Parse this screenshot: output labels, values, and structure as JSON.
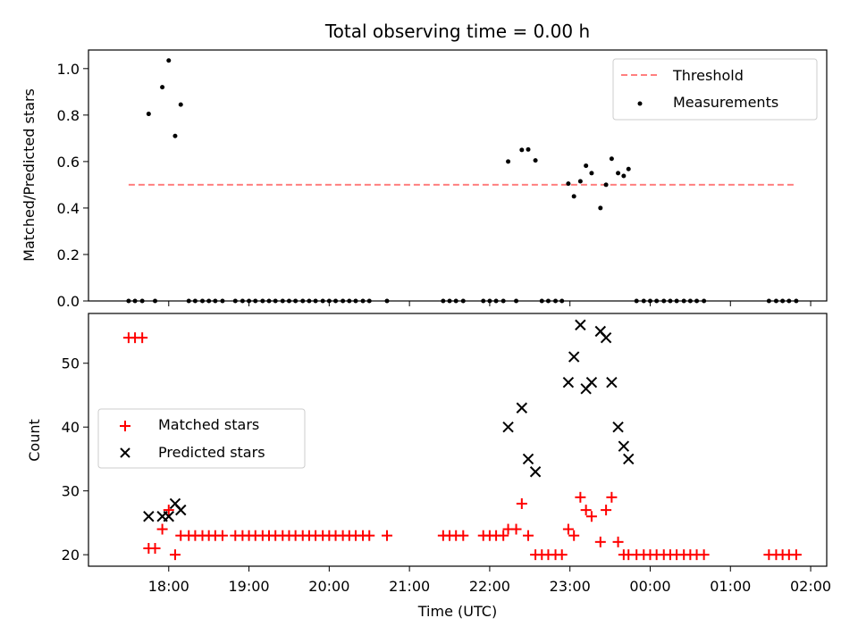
{
  "title": "Total observing time = 0.00 h",
  "chart_data": [
    {
      "type": "scatter",
      "ylabel": "Matched/Predicted stars",
      "xlabel": "",
      "ylim": [
        0,
        1.08
      ],
      "yticks": [
        0.0,
        0.2,
        0.4,
        0.6,
        0.8,
        1.0
      ],
      "ytick_labels": [
        "0.0",
        "0.2",
        "0.4",
        "0.6",
        "0.8",
        "1.0"
      ],
      "legend_position": "upper right",
      "threshold": {
        "name": "Threshold",
        "y": 0.5,
        "x_start": 17.5,
        "x_end": 25.82,
        "color": "#ff7f7f",
        "style": "dashed"
      },
      "series": [
        {
          "name": "Measurements",
          "color": "#000000",
          "marker": "dot",
          "points": [
            [
              17.5,
              0
            ],
            [
              17.58,
              0
            ],
            [
              17.67,
              0
            ],
            [
              17.83,
              0
            ],
            [
              17.75,
              0.805
            ],
            [
              17.92,
              0.92
            ],
            [
              18.0,
              1.035
            ],
            [
              18.08,
              0.71
            ],
            [
              18.15,
              0.845
            ],
            [
              18.25,
              0
            ],
            [
              18.33,
              0
            ],
            [
              18.42,
              0
            ],
            [
              18.5,
              0
            ],
            [
              18.58,
              0
            ],
            [
              18.67,
              0
            ],
            [
              18.83,
              0
            ],
            [
              18.92,
              0
            ],
            [
              19.0,
              0
            ],
            [
              19.08,
              0
            ],
            [
              19.17,
              0
            ],
            [
              19.25,
              0
            ],
            [
              19.33,
              0
            ],
            [
              19.42,
              0
            ],
            [
              19.5,
              0
            ],
            [
              19.58,
              0
            ],
            [
              19.67,
              0
            ],
            [
              19.75,
              0
            ],
            [
              19.83,
              0
            ],
            [
              19.92,
              0
            ],
            [
              20.0,
              0
            ],
            [
              20.08,
              0
            ],
            [
              20.17,
              0
            ],
            [
              20.25,
              0
            ],
            [
              20.33,
              0
            ],
            [
              20.42,
              0
            ],
            [
              20.5,
              0
            ],
            [
              20.72,
              0
            ],
            [
              21.42,
              0
            ],
            [
              21.5,
              0
            ],
            [
              21.58,
              0
            ],
            [
              21.67,
              0
            ],
            [
              21.92,
              0
            ],
            [
              22.0,
              0
            ],
            [
              22.08,
              0
            ],
            [
              22.17,
              0
            ],
            [
              22.33,
              0
            ],
            [
              22.23,
              0.6
            ],
            [
              22.4,
              0.65
            ],
            [
              22.48,
              0.652
            ],
            [
              22.57,
              0.605
            ],
            [
              22.65,
              0
            ],
            [
              22.73,
              0
            ],
            [
              22.82,
              0
            ],
            [
              22.9,
              0
            ],
            [
              22.98,
              0.505
            ],
            [
              23.05,
              0.45
            ],
            [
              23.13,
              0.515
            ],
            [
              23.2,
              0.582
            ],
            [
              23.27,
              0.55
            ],
            [
              23.38,
              0.4
            ],
            [
              23.45,
              0.5
            ],
            [
              23.52,
              0.612
            ],
            [
              23.6,
              0.55
            ],
            [
              23.67,
              0.538
            ],
            [
              23.73,
              0.568
            ],
            [
              23.83,
              0
            ],
            [
              23.92,
              0
            ],
            [
              24.0,
              0
            ],
            [
              24.08,
              0
            ],
            [
              24.17,
              0
            ],
            [
              24.25,
              0
            ],
            [
              24.33,
              0
            ],
            [
              24.42,
              0
            ],
            [
              24.5,
              0
            ],
            [
              24.58,
              0
            ],
            [
              24.67,
              0
            ],
            [
              25.48,
              0
            ],
            [
              25.57,
              0
            ],
            [
              25.65,
              0
            ],
            [
              25.73,
              0
            ],
            [
              25.82,
              0
            ]
          ]
        }
      ]
    },
    {
      "type": "scatter",
      "ylabel": "Count",
      "xlabel": "Time (UTC)",
      "ylim": [
        18.2,
        57.8
      ],
      "yticks": [
        20,
        30,
        40,
        50
      ],
      "ytick_labels": [
        "20",
        "30",
        "40",
        "50"
      ],
      "xlim": [
        17.0,
        26.2
      ],
      "xticks": [
        18,
        19,
        20,
        21,
        22,
        23,
        24,
        25,
        26
      ],
      "xtick_labels": [
        "18:00",
        "19:00",
        "20:00",
        "21:00",
        "22:00",
        "23:00",
        "00:00",
        "01:00",
        "02:00"
      ],
      "legend_position": "center left",
      "series": [
        {
          "name": "Matched stars",
          "color": "#ff0000",
          "marker": "plus",
          "points": [
            [
              17.5,
              54
            ],
            [
              17.58,
              54
            ],
            [
              17.67,
              54
            ],
            [
              17.75,
              21
            ],
            [
              17.83,
              21
            ],
            [
              17.92,
              24
            ],
            [
              18.0,
              27
            ],
            [
              18.08,
              20
            ],
            [
              18.15,
              23
            ],
            [
              18.25,
              23
            ],
            [
              18.33,
              23
            ],
            [
              18.42,
              23
            ],
            [
              18.5,
              23
            ],
            [
              18.58,
              23
            ],
            [
              18.67,
              23
            ],
            [
              18.83,
              23
            ],
            [
              18.92,
              23
            ],
            [
              19.0,
              23
            ],
            [
              19.08,
              23
            ],
            [
              19.17,
              23
            ],
            [
              19.25,
              23
            ],
            [
              19.33,
              23
            ],
            [
              19.42,
              23
            ],
            [
              19.5,
              23
            ],
            [
              19.58,
              23
            ],
            [
              19.67,
              23
            ],
            [
              19.75,
              23
            ],
            [
              19.83,
              23
            ],
            [
              19.92,
              23
            ],
            [
              20.0,
              23
            ],
            [
              20.08,
              23
            ],
            [
              20.17,
              23
            ],
            [
              20.25,
              23
            ],
            [
              20.33,
              23
            ],
            [
              20.42,
              23
            ],
            [
              20.5,
              23
            ],
            [
              20.72,
              23
            ],
            [
              21.42,
              23
            ],
            [
              21.5,
              23
            ],
            [
              21.58,
              23
            ],
            [
              21.67,
              23
            ],
            [
              21.92,
              23
            ],
            [
              22.0,
              23
            ],
            [
              22.08,
              23
            ],
            [
              22.17,
              23
            ],
            [
              22.23,
              24
            ],
            [
              22.33,
              24
            ],
            [
              22.4,
              28
            ],
            [
              22.48,
              23
            ],
            [
              22.57,
              20
            ],
            [
              22.65,
              20
            ],
            [
              22.73,
              20
            ],
            [
              22.82,
              20
            ],
            [
              22.9,
              20
            ],
            [
              22.98,
              24
            ],
            [
              23.05,
              23
            ],
            [
              23.13,
              29
            ],
            [
              23.2,
              27
            ],
            [
              23.27,
              26
            ],
            [
              23.38,
              22
            ],
            [
              23.45,
              27
            ],
            [
              23.52,
              29
            ],
            [
              23.6,
              22
            ],
            [
              23.67,
              20
            ],
            [
              23.73,
              20
            ],
            [
              23.83,
              20
            ],
            [
              23.92,
              20
            ],
            [
              24.0,
              20
            ],
            [
              24.08,
              20
            ],
            [
              24.17,
              20
            ],
            [
              24.25,
              20
            ],
            [
              24.33,
              20
            ],
            [
              24.42,
              20
            ],
            [
              24.5,
              20
            ],
            [
              24.58,
              20
            ],
            [
              24.67,
              20
            ],
            [
              25.48,
              20
            ],
            [
              25.57,
              20
            ],
            [
              25.65,
              20
            ],
            [
              25.73,
              20
            ],
            [
              25.82,
              20
            ]
          ]
        },
        {
          "name": "Predicted stars",
          "color": "#000000",
          "marker": "x",
          "points": [
            [
              17.75,
              26
            ],
            [
              17.92,
              26
            ],
            [
              18.0,
              26
            ],
            [
              18.08,
              28
            ],
            [
              18.15,
              27
            ],
            [
              22.23,
              40
            ],
            [
              22.4,
              43
            ],
            [
              22.48,
              35
            ],
            [
              22.57,
              33
            ],
            [
              22.98,
              47
            ],
            [
              23.05,
              51
            ],
            [
              23.13,
              56
            ],
            [
              23.2,
              46
            ],
            [
              23.27,
              47
            ],
            [
              23.38,
              55
            ],
            [
              23.45,
              54
            ],
            [
              23.52,
              47
            ],
            [
              23.6,
              40
            ],
            [
              23.67,
              37
            ],
            [
              23.73,
              35
            ]
          ]
        }
      ]
    }
  ]
}
